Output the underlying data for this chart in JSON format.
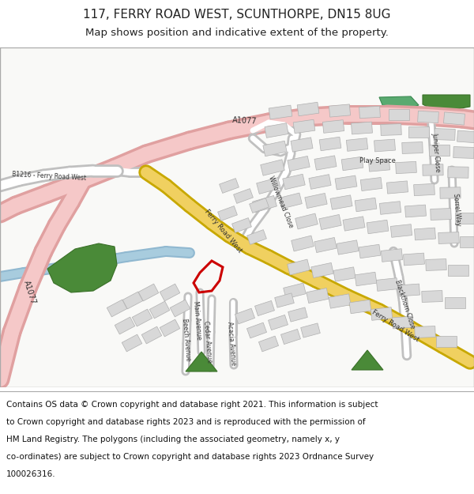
{
  "title_line1": "117, FERRY ROAD WEST, SCUNTHORPE, DN15 8UG",
  "title_line2": "Map shows position and indicative extent of the property.",
  "footer_lines": [
    "Contains OS data © Crown copyright and database right 2021. This information is subject",
    "to Crown copyright and database rights 2023 and is reproduced with the permission of",
    "HM Land Registry. The polygons (including the associated geometry, namely x, y",
    "co-ordinates) are subject to Crown copyright and database rights 2023 Ordnance Survey",
    "100026316."
  ],
  "map_bg": "#f9f9f7",
  "building_color": "#d8d8d8",
  "building_outline": "#b0b0b0",
  "green_color": "#5a9040",
  "water_color": "#a8ccde",
  "pink_road_color": "#f5c8c8",
  "pink_road_outline": "#e0a0a0",
  "yellow_road_color": "#f0d060",
  "yellow_road_outline": "#c8a800",
  "white_road_color": "#ffffff",
  "white_road_outline": "#c0c0c0",
  "highlight_color": "#cc0000",
  "title_fontsize": 11,
  "subtitle_fontsize": 9.5,
  "footer_fontsize": 7.5
}
